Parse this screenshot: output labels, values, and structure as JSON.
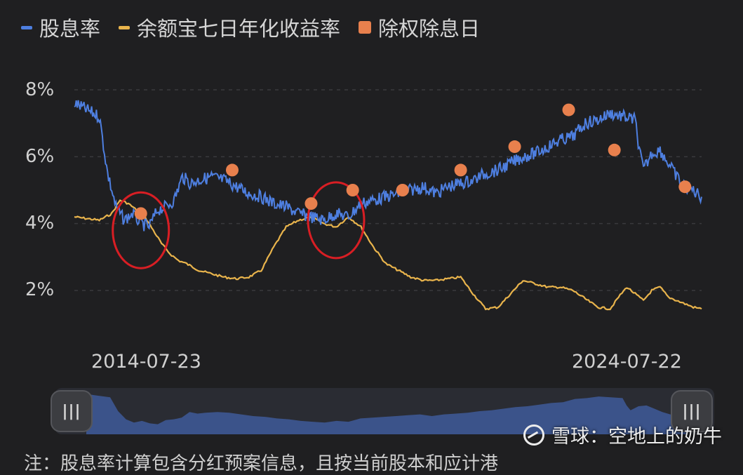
{
  "legend": [
    {
      "label": "股息率",
      "color": "#4e7fe0",
      "marker": "line"
    },
    {
      "label": "余额宝七日年化收益率",
      "color": "#e9b44c",
      "marker": "line"
    },
    {
      "label": "除权除息日",
      "color": "#e8804d",
      "marker": "square"
    }
  ],
  "watermark": {
    "text": "雪球：空地上的奶牛",
    "icon": "snowball-logo-icon"
  },
  "footer_text": "注：股息率计算包含分红预案信息，且按当前股本和应计港",
  "slider": {
    "left_handle": "|||",
    "right_handle": "|||"
  },
  "chart_data": {
    "type": "line",
    "x_ticks": [
      "2014-07-23",
      "2024-07-22"
    ],
    "x_range": [
      "2013-03",
      "2025-10"
    ],
    "y_ticks": [
      "8%",
      "6%",
      "4%",
      "2%"
    ],
    "ylim": [
      1,
      9
    ],
    "series": [
      {
        "name": "股息率",
        "color": "#4e7fe0",
        "points": [
          [
            "2013-03",
            7.6
          ],
          [
            "2013-06",
            7.4
          ],
          [
            "2013-09",
            7.2
          ],
          [
            "2013-11",
            5.5
          ],
          [
            "2014-01",
            4.5
          ],
          [
            "2014-03",
            4.1
          ],
          [
            "2014-05",
            4.3
          ],
          [
            "2014-07",
            4.0
          ],
          [
            "2014-09",
            3.9
          ],
          [
            "2014-11",
            4.4
          ],
          [
            "2015-01",
            4.5
          ],
          [
            "2015-03",
            4.7
          ],
          [
            "2015-05",
            5.4
          ],
          [
            "2015-07",
            5.2
          ],
          [
            "2015-09",
            5.3
          ],
          [
            "2015-12",
            5.4
          ],
          [
            "2016-03",
            5.3
          ],
          [
            "2016-06",
            5.1
          ],
          [
            "2016-09",
            4.9
          ],
          [
            "2016-12",
            4.8
          ],
          [
            "2017-03",
            4.6
          ],
          [
            "2017-06",
            4.5
          ],
          [
            "2017-09",
            4.3
          ],
          [
            "2017-12",
            4.2
          ],
          [
            "2018-03",
            4.1
          ],
          [
            "2018-06",
            4.3
          ],
          [
            "2018-09",
            4.2
          ],
          [
            "2018-12",
            4.6
          ],
          [
            "2019-03",
            4.7
          ],
          [
            "2019-06",
            4.8
          ],
          [
            "2019-09",
            4.9
          ],
          [
            "2019-12",
            5.0
          ],
          [
            "2020-03",
            5.1
          ],
          [
            "2020-06",
            4.9
          ],
          [
            "2020-09",
            5.1
          ],
          [
            "2020-12",
            5.2
          ],
          [
            "2021-03",
            5.3
          ],
          [
            "2021-06",
            5.5
          ],
          [
            "2021-09",
            5.6
          ],
          [
            "2021-12",
            5.8
          ],
          [
            "2022-03",
            6.0
          ],
          [
            "2022-06",
            6.1
          ],
          [
            "2022-09",
            6.3
          ],
          [
            "2022-12",
            6.5
          ],
          [
            "2023-03",
            6.6
          ],
          [
            "2023-06",
            7.0
          ],
          [
            "2023-09",
            7.1
          ],
          [
            "2023-12",
            7.3
          ],
          [
            "2024-03",
            7.2
          ],
          [
            "2024-06",
            7.1
          ],
          [
            "2024-07",
            6.2
          ],
          [
            "2024-08",
            5.6
          ],
          [
            "2024-10",
            6.1
          ],
          [
            "2024-12",
            6.2
          ],
          [
            "2025-02",
            5.8
          ],
          [
            "2025-04",
            5.4
          ],
          [
            "2025-06",
            5.1
          ],
          [
            "2025-08",
            5.0
          ],
          [
            "2025-10",
            4.8
          ]
        ]
      },
      {
        "name": "余额宝七日年化收益率",
        "color": "#e9b44c",
        "points": [
          [
            "2013-03",
            4.2
          ],
          [
            "2013-06",
            4.15
          ],
          [
            "2013-09",
            4.1
          ],
          [
            "2013-12",
            4.3
          ],
          [
            "2014-02",
            4.7
          ],
          [
            "2014-04",
            4.6
          ],
          [
            "2014-06",
            4.4
          ],
          [
            "2014-08",
            4.2
          ],
          [
            "2014-10",
            3.8
          ],
          [
            "2014-12",
            3.4
          ],
          [
            "2015-02",
            3.1
          ],
          [
            "2015-04",
            2.9
          ],
          [
            "2015-06",
            2.8
          ],
          [
            "2015-09",
            2.6
          ],
          [
            "2015-12",
            2.5
          ],
          [
            "2016-03",
            2.4
          ],
          [
            "2016-06",
            2.35
          ],
          [
            "2016-09",
            2.4
          ],
          [
            "2016-12",
            2.6
          ],
          [
            "2017-03",
            3.3
          ],
          [
            "2017-06",
            3.9
          ],
          [
            "2017-09",
            4.1
          ],
          [
            "2017-12",
            4.2
          ],
          [
            "2018-03",
            4.0
          ],
          [
            "2018-06",
            3.9
          ],
          [
            "2018-09",
            4.2
          ],
          [
            "2018-12",
            3.9
          ],
          [
            "2019-03",
            3.3
          ],
          [
            "2019-06",
            2.8
          ],
          [
            "2019-09",
            2.6
          ],
          [
            "2019-12",
            2.4
          ],
          [
            "2020-03",
            2.3
          ],
          [
            "2020-06",
            2.3
          ],
          [
            "2020-09",
            2.35
          ],
          [
            "2020-12",
            2.4
          ],
          [
            "2021-03",
            1.9
          ],
          [
            "2021-06",
            1.45
          ],
          [
            "2021-09",
            1.5
          ],
          [
            "2021-12",
            1.9
          ],
          [
            "2022-03",
            2.3
          ],
          [
            "2022-06",
            2.2
          ],
          [
            "2022-09",
            2.1
          ],
          [
            "2022-12",
            2.1
          ],
          [
            "2023-03",
            2.0
          ],
          [
            "2023-06",
            1.75
          ],
          [
            "2023-09",
            1.5
          ],
          [
            "2023-12",
            1.45
          ],
          [
            "2024-02",
            1.8
          ],
          [
            "2024-04",
            2.1
          ],
          [
            "2024-06",
            1.9
          ],
          [
            "2024-08",
            1.7
          ],
          [
            "2024-10",
            2.0
          ],
          [
            "2024-12",
            2.1
          ],
          [
            "2025-02",
            1.8
          ],
          [
            "2025-04",
            1.7
          ],
          [
            "2025-06",
            1.6
          ],
          [
            "2025-08",
            1.5
          ],
          [
            "2025-10",
            1.45
          ]
        ]
      },
      {
        "name": "除权除息日",
        "color": "#e8804d",
        "type": "scatter",
        "points": [
          [
            "2014-07",
            4.3
          ],
          [
            "2016-05",
            5.6
          ],
          [
            "2017-12",
            4.6
          ],
          [
            "2018-10",
            5.0
          ],
          [
            "2019-10",
            5.0
          ],
          [
            "2020-12",
            5.6
          ],
          [
            "2022-01",
            6.3
          ],
          [
            "2023-02",
            7.4
          ],
          [
            "2024-01",
            6.2
          ],
          [
            "2025-06",
            5.1
          ]
        ]
      }
    ],
    "annotations": [
      {
        "type": "circle",
        "color": "#d81e24",
        "x": "2014-07",
        "y": 3.8
      },
      {
        "type": "circle",
        "color": "#d81e24",
        "x": "2018-06",
        "y": 4.1
      }
    ],
    "grid": true,
    "legend_position": "top-left"
  }
}
